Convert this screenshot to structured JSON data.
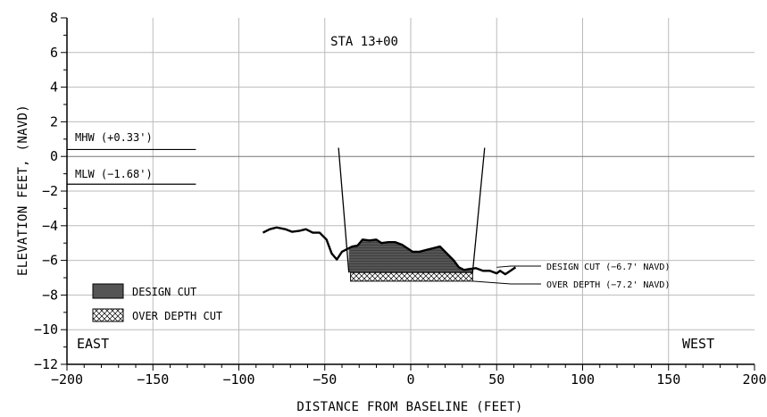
{
  "chart_data": {
    "type": "line",
    "title": "STA 13+00",
    "xlabel": "DISTANCE FROM BASELINE (FEET)",
    "ylabel": "ELEVATION FEET, (NAVD)",
    "xlim": [
      -200,
      200
    ],
    "ylim": [
      -12,
      8
    ],
    "x_major_step": 50,
    "y_major_step": 2,
    "x_ticks": [
      {
        "v": -200,
        "label": "−200"
      },
      {
        "v": -150,
        "label": "−150"
      },
      {
        "v": -100,
        "label": "−100"
      },
      {
        "v": -50,
        "label": "−50"
      },
      {
        "v": 0,
        "label": "0"
      },
      {
        "v": 50,
        "label": "50"
      },
      {
        "v": 100,
        "label": "100"
      },
      {
        "v": 150,
        "label": "150"
      },
      {
        "v": 200,
        "label": "200"
      }
    ],
    "y_ticks": [
      {
        "v": 8,
        "label": "8"
      },
      {
        "v": 6,
        "label": "6"
      },
      {
        "v": 4,
        "label": "4"
      },
      {
        "v": 2,
        "label": "2"
      },
      {
        "v": 0,
        "label": "0"
      },
      {
        "v": -2,
        "label": "−2"
      },
      {
        "v": -4,
        "label": "−4"
      },
      {
        "v": -6,
        "label": "−6"
      },
      {
        "v": -8,
        "label": "−8"
      },
      {
        "v": -10,
        "label": "−10"
      },
      {
        "v": -12,
        "label": "−12"
      }
    ],
    "grid": true,
    "ground_profile": [
      [
        -86,
        -4.4
      ],
      [
        -82,
        -4.2
      ],
      [
        -78,
        -4.1
      ],
      [
        -73,
        -4.2
      ],
      [
        -69,
        -4.35
      ],
      [
        -65,
        -4.3
      ],
      [
        -61,
        -4.2
      ],
      [
        -57,
        -4.4
      ],
      [
        -53,
        -4.4
      ],
      [
        -49,
        -4.8
      ],
      [
        -46,
        -5.6
      ],
      [
        -43,
        -5.95
      ],
      [
        -40,
        -5.5
      ],
      [
        -37,
        -5.35
      ],
      [
        -34,
        -5.2
      ],
      [
        -31,
        -5.15
      ],
      [
        -28,
        -4.8
      ],
      [
        -24,
        -4.85
      ],
      [
        -20,
        -4.8
      ],
      [
        -17,
        -5.0
      ],
      [
        -13,
        -4.95
      ],
      [
        -9,
        -4.95
      ],
      [
        -5,
        -5.1
      ],
      [
        -2,
        -5.3
      ],
      [
        1,
        -5.5
      ],
      [
        5,
        -5.5
      ],
      [
        9,
        -5.4
      ],
      [
        13,
        -5.3
      ],
      [
        17,
        -5.2
      ],
      [
        21,
        -5.6
      ],
      [
        25,
        -6.0
      ],
      [
        28,
        -6.4
      ],
      [
        31,
        -6.55
      ],
      [
        34,
        -6.5
      ],
      [
        38,
        -6.45
      ],
      [
        42,
        -6.6
      ],
      [
        46,
        -6.6
      ],
      [
        50,
        -6.75
      ],
      [
        52,
        -6.6
      ],
      [
        55,
        -6.8
      ],
      [
        58,
        -6.6
      ],
      [
        61,
        -6.4
      ]
    ],
    "cut_slope_left": [
      [
        -42,
        0.5
      ],
      [
        -36,
        -6.7
      ]
    ],
    "cut_slope_right": [
      [
        43,
        0.5
      ],
      [
        36,
        -6.7
      ]
    ],
    "design_cut": {
      "elevation": -6.7,
      "x_range": [
        -36,
        36
      ],
      "label": "DESIGN CUT (−6.7' NAVD)"
    },
    "over_depth": {
      "elevation": -7.2,
      "x_range": [
        -35,
        36
      ],
      "label": "OVER DEPTH (−7.2' NAVD)"
    },
    "callout_anchor": [
      50,
      -6.4
    ],
    "mhw": {
      "elevation": 0.4,
      "label": "MHW (+0.33')",
      "x_range": [
        -200,
        -125
      ]
    },
    "mlw": {
      "elevation": -1.6,
      "label": "MLW (−1.68')",
      "x_range": [
        -200,
        -125
      ]
    },
    "zero_line": 0,
    "legend": [
      {
        "name": "DESIGN CUT",
        "swatch": "dark-fill"
      },
      {
        "name": "OVER DEPTH CUT",
        "swatch": "crosshatch"
      }
    ],
    "legend_placement": "bottom-left",
    "direction_labels": {
      "left": "EAST",
      "right": "WEST"
    }
  },
  "colors": {
    "line": "#000000",
    "grid": "#bbbbbb",
    "cut_fill": "#555555",
    "cut_stripe": "#3a3a3a",
    "background": "#ffffff"
  }
}
